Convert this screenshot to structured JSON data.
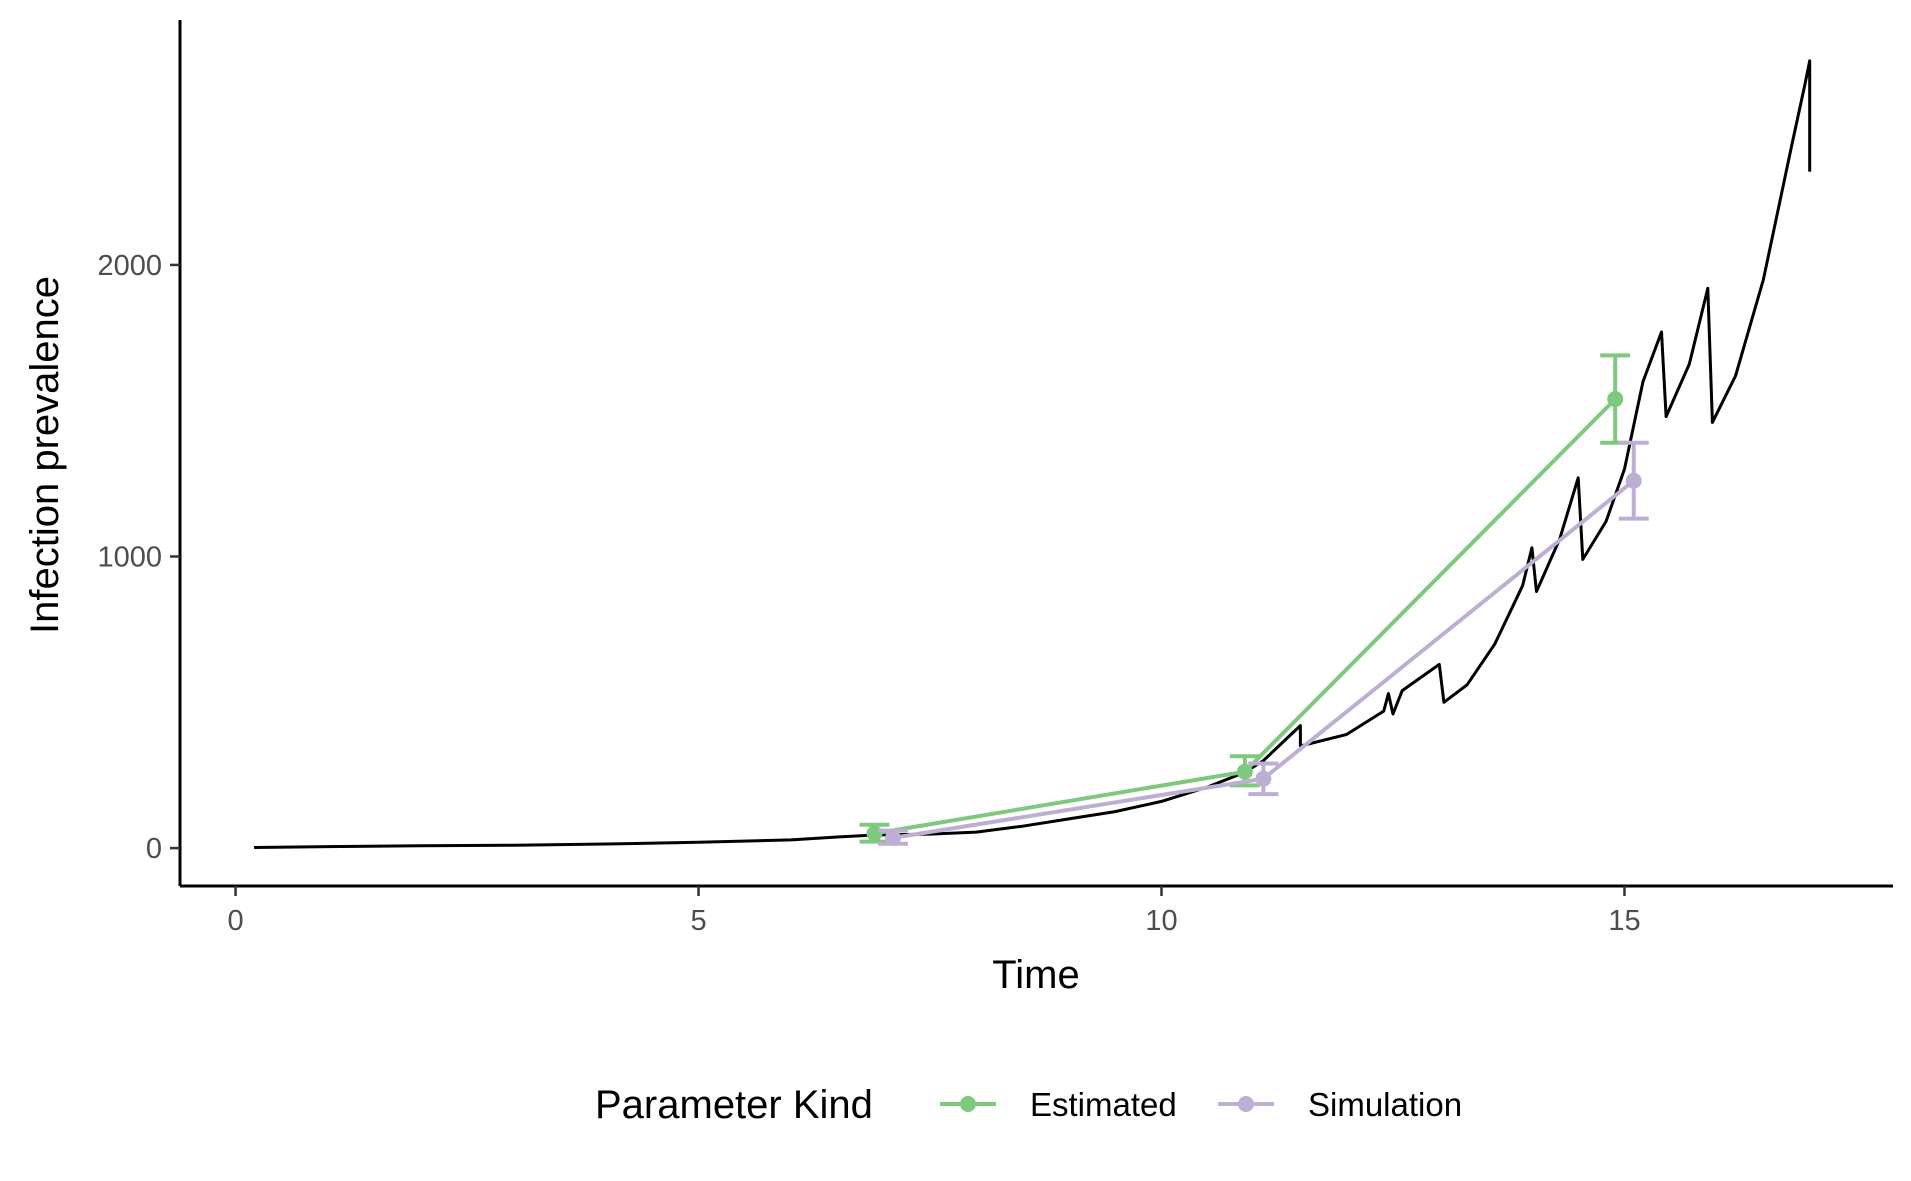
{
  "chart_data": {
    "type": "line",
    "title": "",
    "xlabel": "Time",
    "ylabel": "Infection prevalence",
    "xlim": [
      -0.6,
      17.9
    ],
    "ylim": [
      -130,
      2840
    ],
    "x_ticks": [
      0,
      5,
      10,
      15
    ],
    "y_ticks": [
      0,
      1000,
      2000
    ],
    "grid": false,
    "legend": {
      "title": "Parameter Kind",
      "placement": "bottom",
      "entries": [
        "Estimated",
        "Simulation"
      ]
    },
    "trajectory": {
      "color": "#000000",
      "points": [
        [
          0.2,
          2
        ],
        [
          1,
          5
        ],
        [
          2,
          8
        ],
        [
          3,
          10
        ],
        [
          4,
          14
        ],
        [
          5,
          20
        ],
        [
          6,
          28
        ],
        [
          6.5,
          38
        ],
        [
          6.9,
          45
        ],
        [
          7.5,
          48
        ],
        [
          8,
          55
        ],
        [
          8.5,
          75
        ],
        [
          9,
          100
        ],
        [
          9.5,
          125
        ],
        [
          10,
          160
        ],
        [
          10.5,
          210
        ],
        [
          10.9,
          260
        ],
        [
          11.1,
          300
        ],
        [
          11.4,
          390
        ],
        [
          11.5,
          420
        ],
        [
          11.5,
          350
        ],
        [
          12,
          390
        ],
        [
          12.4,
          470
        ],
        [
          12.45,
          530
        ],
        [
          12.5,
          460
        ],
        [
          12.6,
          540
        ],
        [
          13,
          630
        ],
        [
          13.05,
          500
        ],
        [
          13.3,
          560
        ],
        [
          13.6,
          700
        ],
        [
          13.9,
          900
        ],
        [
          14.0,
          1030
        ],
        [
          14.05,
          880
        ],
        [
          14.3,
          1060
        ],
        [
          14.5,
          1270
        ],
        [
          14.55,
          990
        ],
        [
          14.8,
          1120
        ],
        [
          15,
          1300
        ],
        [
          15.2,
          1600
        ],
        [
          15.4,
          1770
        ],
        [
          15.45,
          1480
        ],
        [
          15.7,
          1660
        ],
        [
          15.9,
          1920
        ],
        [
          15.95,
          1460
        ],
        [
          16.2,
          1620
        ],
        [
          16.5,
          1950
        ],
        [
          16.8,
          2400
        ],
        [
          16.95,
          2620
        ],
        [
          17.0,
          2700
        ],
        [
          17.0,
          2320
        ]
      ]
    },
    "series": [
      {
        "name": "Estimated",
        "color": "#7fc97f",
        "x": [
          6.9,
          10.9,
          14.9
        ],
        "y": [
          50,
          262,
          1540
        ],
        "ymin": [
          22,
          215,
          1390
        ],
        "ymax": [
          80,
          315,
          1690
        ]
      },
      {
        "name": "Simulation",
        "color": "#beaed4",
        "x": [
          7.1,
          11.1,
          15.1
        ],
        "y": [
          35,
          238,
          1260
        ],
        "ymin": [
          15,
          185,
          1130
        ],
        "ymax": [
          60,
          290,
          1390
        ]
      }
    ]
  }
}
